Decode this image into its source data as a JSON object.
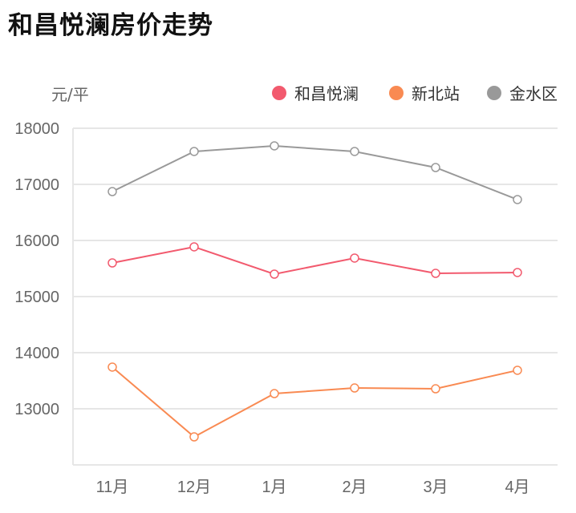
{
  "title": "和昌悦澜房价走势",
  "chart_data": {
    "type": "line",
    "title": "和昌悦澜房价走势",
    "ylabel": "元/平",
    "xlabel": "",
    "categories": [
      "11月",
      "12月",
      "1月",
      "2月",
      "3月",
      "4月"
    ],
    "ylim": [
      12000,
      18000
    ],
    "yticks": [
      13000,
      14000,
      15000,
      16000,
      17000,
      18000
    ],
    "grid": true,
    "legend_position": "top-right",
    "series": [
      {
        "name": "和昌悦澜",
        "color": "#f25a6e",
        "values": [
          15600,
          15886,
          15400,
          15686,
          15414,
          15429
        ]
      },
      {
        "name": "新北站",
        "color": "#f98a52",
        "values": [
          13743,
          12500,
          13271,
          13371,
          13357,
          13686
        ]
      },
      {
        "name": "金水区",
        "color": "#999999",
        "values": [
          16871,
          17586,
          17686,
          17586,
          17300,
          16729
        ]
      }
    ]
  }
}
